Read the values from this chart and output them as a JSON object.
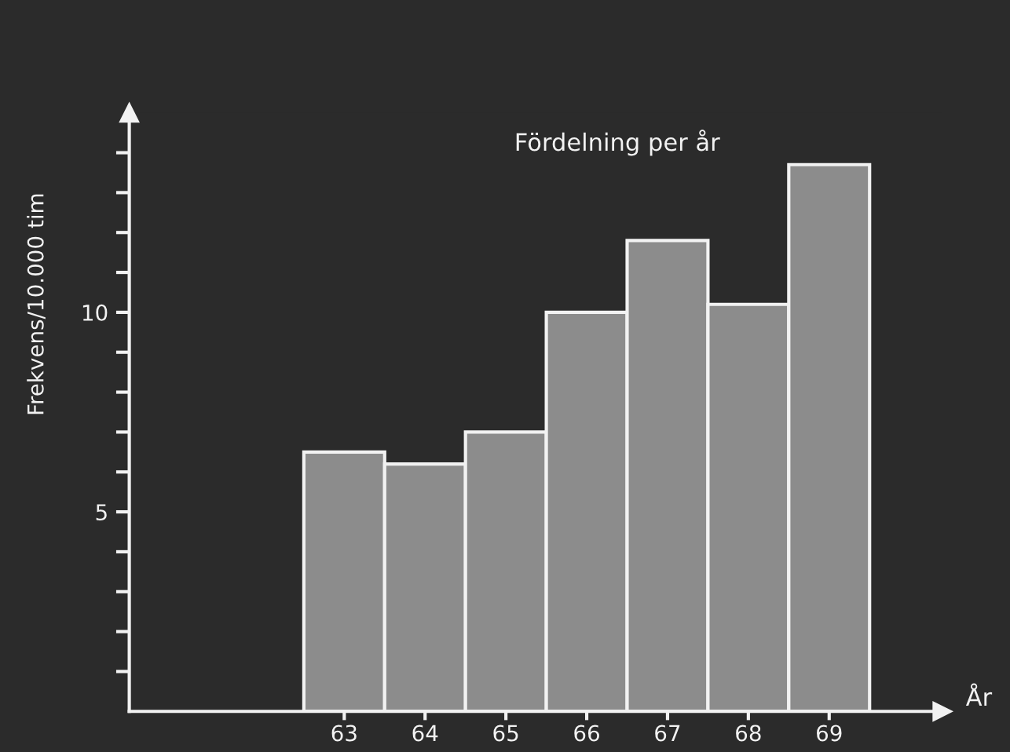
{
  "chart_data": {
    "type": "bar",
    "title": "Fördelning per år",
    "ylabel": "Frekvens/10.000 tim",
    "xlabel": "År",
    "x": [
      63,
      64,
      65,
      66,
      67,
      68,
      69
    ],
    "values": [
      6.5,
      6.2,
      7.0,
      10.0,
      11.8,
      10.2,
      13.7
    ],
    "color": "#8c8c8c",
    "xlim": [
      60.34,
      70.4
    ],
    "xticks": [
      63,
      64,
      65,
      66,
      67,
      68,
      69
    ],
    "ylim": [
      0,
      15
    ],
    "yticks": [
      {
        "value": 1,
        "label": null
      },
      {
        "value": 2,
        "label": null
      },
      {
        "value": 3,
        "label": null
      },
      {
        "value": 4,
        "label": null
      },
      5,
      {
        "value": 6,
        "label": null
      },
      {
        "value": 7,
        "label": null
      },
      {
        "value": 8,
        "label": null
      },
      {
        "value": 9,
        "label": null
      },
      10,
      {
        "value": 11,
        "label": null
      },
      {
        "value": 12,
        "label": null
      },
      {
        "value": 13,
        "label": null
      },
      {
        "value": 14,
        "label": null
      }
    ],
    "grid": false,
    "legend": false
  }
}
